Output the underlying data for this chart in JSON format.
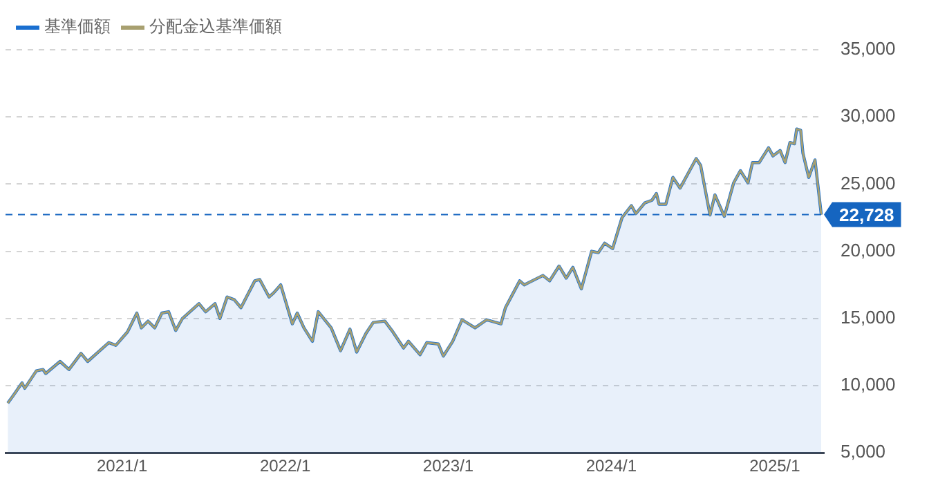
{
  "chart_data": {
    "type": "area",
    "x": [
      "2020-04-20",
      "2020-05-01",
      "2020-05-22",
      "2020-05-28",
      "2020-06-23",
      "2020-07-08",
      "2020-07-14",
      "2020-08-15",
      "2020-09-04",
      "2020-10-01",
      "2020-10-16",
      "2020-12-02",
      "2020-12-18",
      "2021-01-13",
      "2021-02-03",
      "2021-02-13",
      "2021-02-28",
      "2021-03-15",
      "2021-03-31",
      "2021-04-15",
      "2021-05-01",
      "2021-05-16",
      "2021-06-22",
      "2021-07-07",
      "2021-07-28",
      "2021-08-08",
      "2021-08-24",
      "2021-09-09",
      "2021-09-24",
      "2021-10-25",
      "2021-11-05",
      "2021-11-26",
      "2021-12-06",
      "2021-12-22",
      "2022-01-17",
      "2022-01-28",
      "2022-02-12",
      "2022-03-03",
      "2022-03-16",
      "2022-04-14",
      "2022-05-05",
      "2022-05-26",
      "2022-06-10",
      "2022-07-01",
      "2022-07-17",
      "2022-08-12",
      "2022-08-28",
      "2022-09-23",
      "2022-10-04",
      "2022-10-30",
      "2022-11-14",
      "2022-12-10",
      "2022-12-21",
      "2023-01-11",
      "2023-02-01",
      "2023-03-02",
      "2023-03-28",
      "2023-04-29",
      "2023-05-09",
      "2023-06-10",
      "2023-06-20",
      "2023-08-01",
      "2023-08-16",
      "2023-09-06",
      "2023-09-22",
      "2023-10-07",
      "2023-10-26",
      "2023-11-18",
      "2023-12-03",
      "2023-12-17",
      "2024-01-04",
      "2024-01-25",
      "2024-02-15",
      "2024-02-25",
      "2024-03-16",
      "2024-04-01",
      "2024-04-11",
      "2024-04-17",
      "2024-05-02",
      "2024-05-18",
      "2024-06-03",
      "2024-07-09",
      "2024-07-19",
      "2024-08-09",
      "2024-08-20",
      "2024-09-10",
      "2024-10-01",
      "2024-10-16",
      "2024-11-02",
      "2024-11-12",
      "2024-11-27",
      "2024-12-18",
      "2024-12-28",
      "2025-01-13",
      "2025-01-24",
      "2025-02-04",
      "2025-02-14",
      "2025-02-19",
      "2025-02-28",
      "2025-03-05",
      "2025-03-18",
      "2025-04-01",
      "2025-04-15"
    ],
    "series": [
      {
        "name": "基準価額",
        "type": "area",
        "color": "#1a6fd0",
        "values": [
          8700,
          9200,
          10200,
          9800,
          11100,
          11200,
          10900,
          11800,
          11200,
          12400,
          11800,
          13200,
          13000,
          14000,
          15400,
          14300,
          14800,
          14300,
          15400,
          15500,
          14100,
          15000,
          16100,
          15500,
          16100,
          15000,
          16600,
          16400,
          15800,
          17800,
          17900,
          16600,
          16900,
          17500,
          14600,
          15400,
          14300,
          13300,
          15500,
          14300,
          12600,
          14200,
          12500,
          13900,
          14700,
          14800,
          14100,
          12800,
          13300,
          12300,
          13200,
          13100,
          12200,
          13300,
          14900,
          14300,
          14900,
          14600,
          15800,
          17800,
          17500,
          18200,
          17800,
          18900,
          18000,
          18800,
          17200,
          20000,
          19900,
          20600,
          20200,
          22500,
          23400,
          22800,
          23600,
          23800,
          24300,
          23500,
          23500,
          25500,
          24700,
          26900,
          26400,
          22700,
          24200,
          22600,
          25100,
          26000,
          25100,
          26600,
          26600,
          27700,
          27100,
          27500,
          26600,
          28100,
          28000,
          29100,
          29000,
          27300,
          25500,
          26800,
          22728
        ]
      },
      {
        "name": "分配金込基準価額",
        "type": "line",
        "color": "#a8a070",
        "values": [
          8700,
          9200,
          10200,
          9800,
          11100,
          11200,
          10900,
          11800,
          11200,
          12400,
          11800,
          13200,
          13000,
          14000,
          15400,
          14300,
          14800,
          14300,
          15400,
          15500,
          14100,
          15000,
          16100,
          15500,
          16100,
          15000,
          16600,
          16400,
          15800,
          17800,
          17900,
          16600,
          16900,
          17500,
          14600,
          15400,
          14300,
          13300,
          15500,
          14300,
          12600,
          14200,
          12500,
          13900,
          14700,
          14800,
          14100,
          12800,
          13300,
          12300,
          13200,
          13100,
          12200,
          13300,
          14900,
          14300,
          14900,
          14600,
          15800,
          17800,
          17500,
          18200,
          17800,
          18900,
          18000,
          18800,
          17200,
          20000,
          19900,
          20600,
          20200,
          22500,
          23400,
          22800,
          23600,
          23800,
          24300,
          23500,
          23500,
          25500,
          24700,
          26900,
          26400,
          22700,
          24200,
          22600,
          25100,
          26000,
          25100,
          26600,
          26600,
          27700,
          27100,
          27500,
          26600,
          28100,
          28000,
          29100,
          29000,
          27300,
          25500,
          26800,
          22728
        ]
      }
    ],
    "xlim": [
      "2020-04-15",
      "2025-04-21"
    ],
    "xticks": [
      {
        "value": "2021-01-01",
        "label": "2021/1"
      },
      {
        "value": "2022-01-01",
        "label": "2022/1"
      },
      {
        "value": "2023-01-01",
        "label": "2023/1"
      },
      {
        "value": "2024-01-01",
        "label": "2024/1"
      },
      {
        "value": "2025-01-01",
        "label": "2025/1"
      }
    ],
    "ylim": [
      5000,
      35000
    ],
    "yticks": [
      {
        "value": 5000,
        "label": "5,000"
      },
      {
        "value": 10000,
        "label": "10,000"
      },
      {
        "value": 15000,
        "label": "15,000"
      },
      {
        "value": 20000,
        "label": "20,000"
      },
      {
        "value": 25000,
        "label": "25,000"
      },
      {
        "value": 30000,
        "label": "30,000"
      },
      {
        "value": 35000,
        "label": "35,000"
      }
    ],
    "ref_lines": [
      {
        "axis": "y",
        "value": 22728,
        "label": "22,728",
        "color": "#1565c0",
        "line_style": "dashed"
      }
    ],
    "grid": "y",
    "legend": "top left",
    "marker": "none",
    "line_style": "solid"
  }
}
